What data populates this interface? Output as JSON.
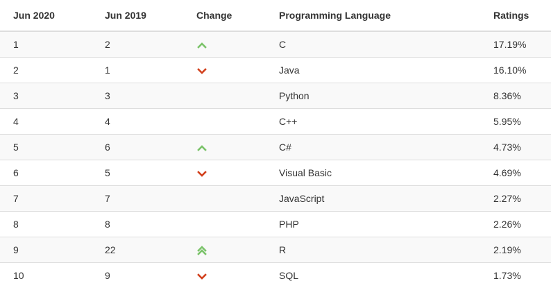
{
  "table": {
    "headers": [
      "Jun 2020",
      "Jun 2019",
      "Change",
      "Programming Language",
      "Ratings"
    ],
    "rows": [
      {
        "jun2020": "1",
        "jun2019": "2",
        "change": "up",
        "language": "C",
        "rating": "17.19%"
      },
      {
        "jun2020": "2",
        "jun2019": "1",
        "change": "down",
        "language": "Java",
        "rating": "16.10%"
      },
      {
        "jun2020": "3",
        "jun2019": "3",
        "change": "none",
        "language": "Python",
        "rating": "8.36%"
      },
      {
        "jun2020": "4",
        "jun2019": "4",
        "change": "none",
        "language": "C++",
        "rating": "5.95%"
      },
      {
        "jun2020": "5",
        "jun2019": "6",
        "change": "up",
        "language": "C#",
        "rating": "4.73%"
      },
      {
        "jun2020": "6",
        "jun2019": "5",
        "change": "down",
        "language": "Visual Basic",
        "rating": "4.69%"
      },
      {
        "jun2020": "7",
        "jun2019": "7",
        "change": "none",
        "language": "JavaScript",
        "rating": "2.27%"
      },
      {
        "jun2020": "8",
        "jun2019": "8",
        "change": "none",
        "language": "PHP",
        "rating": "2.26%"
      },
      {
        "jun2020": "9",
        "jun2019": "22",
        "change": "double-up",
        "language": "R",
        "rating": "2.19%"
      },
      {
        "jun2020": "10",
        "jun2019": "9",
        "change": "down",
        "language": "SQL",
        "rating": "1.73%"
      }
    ]
  },
  "icons": {
    "up": "chevron-up-icon",
    "down": "chevron-down-icon",
    "double-up": "double-chevron-up-icon"
  },
  "colors": {
    "up": "#7bc36a",
    "down": "#d2401c"
  }
}
